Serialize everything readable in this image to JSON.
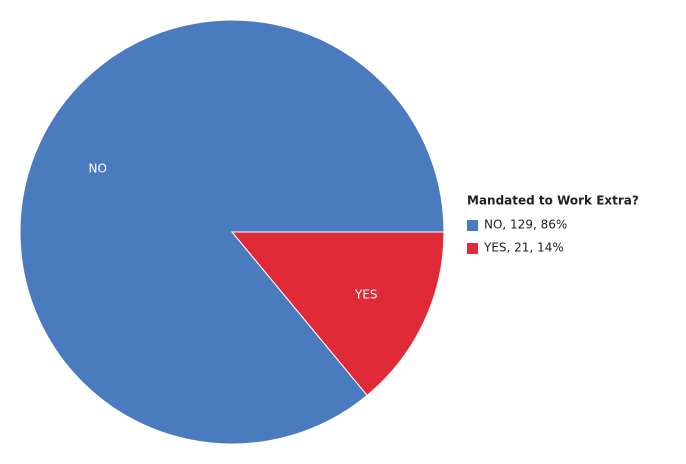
{
  "chart_data": {
    "type": "pie",
    "categories": [
      "NO",
      "YES"
    ],
    "values": [
      129,
      21
    ],
    "colors": [
      "#4a7bbf",
      "#e12a38"
    ],
    "legend_title": "Mandated to Work Extra?",
    "legend_labels": [
      "NO, 129, 86%",
      "YES, 21, 14%"
    ],
    "legend": "right"
  }
}
